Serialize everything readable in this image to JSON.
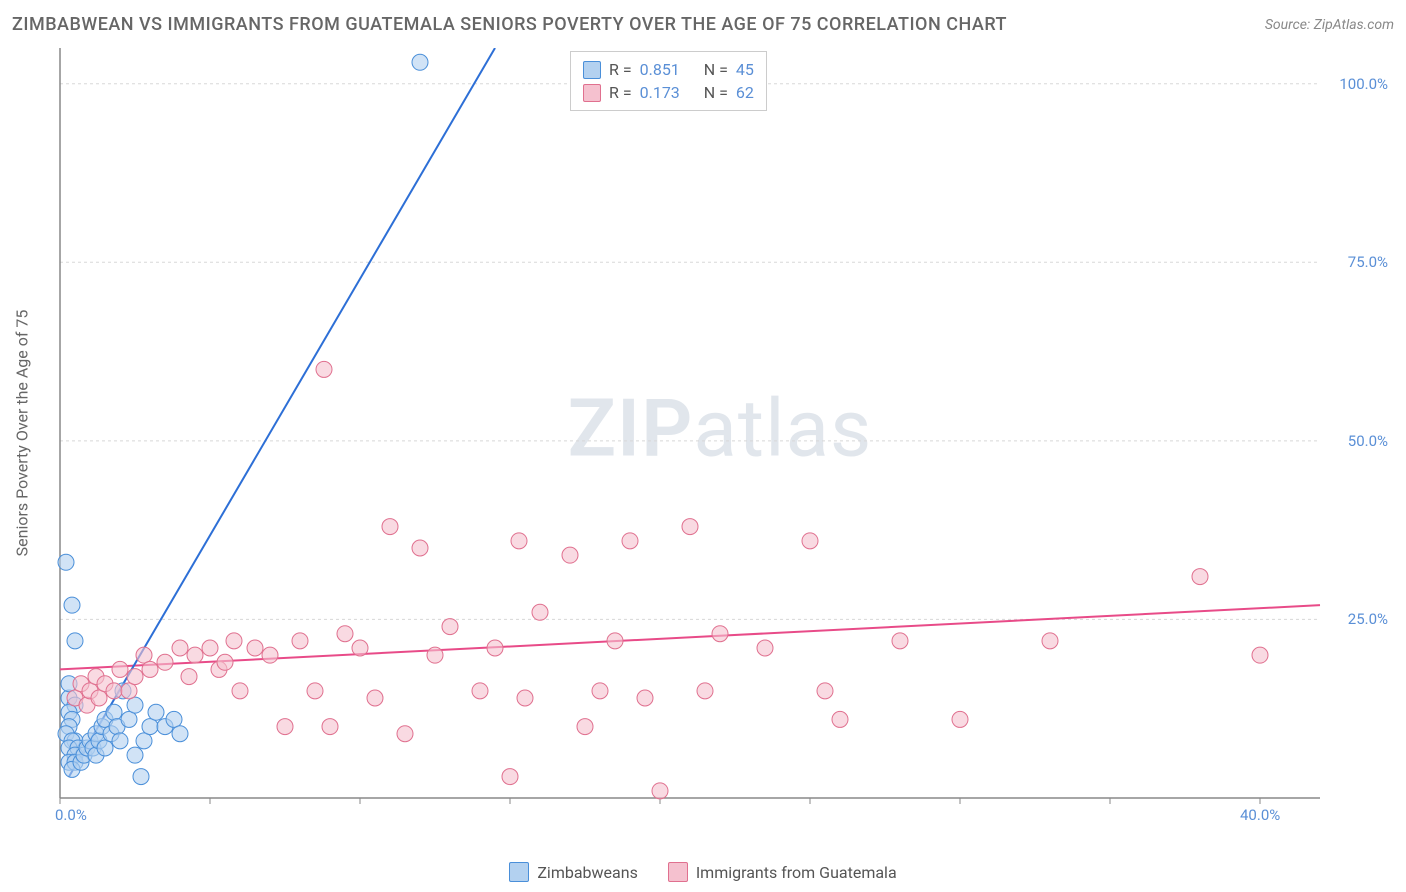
{
  "title": "ZIMBABWEAN VS IMMIGRANTS FROM GUATEMALA SENIORS POVERTY OVER THE AGE OF 75 CORRELATION CHART",
  "source": "Source: ZipAtlas.com",
  "y_axis_label": "Seniors Poverty Over the Age of 75",
  "watermark_a": "ZIP",
  "watermark_b": "atlas",
  "chart": {
    "type": "scatter",
    "background_color": "#ffffff",
    "grid_color": "#d8d8d8",
    "grid_dash": "3,3",
    "axis_color": "#888888",
    "tick_label_color": "#5a8fd6",
    "xlim": [
      0,
      42
    ],
    "ylim": [
      0,
      105
    ],
    "x_ticks": [
      0,
      5,
      10,
      15,
      20,
      25,
      30,
      35,
      40
    ],
    "x_tick_labels": {
      "0": "0.0%",
      "40": "40.0%"
    },
    "y_ticks": [
      25,
      50,
      75,
      100
    ],
    "y_tick_labels": {
      "25": "25.0%",
      "50": "50.0%",
      "75": "75.0%",
      "100": "100.0%"
    },
    "marker_radius": 8,
    "marker_opacity": 0.6,
    "line_width": 2
  },
  "series": {
    "blue": {
      "label": "Zimbabweans",
      "fill": "#b3d1f0",
      "stroke": "#4a8fd9",
      "line_color": "#2d6fd6",
      "R": "0.851",
      "N": "45",
      "trend": {
        "x1": 0.3,
        "y1": 3,
        "x2": 14.5,
        "y2": 105
      },
      "points": [
        [
          0.2,
          33
        ],
        [
          0.4,
          27
        ],
        [
          0.5,
          22
        ],
        [
          0.3,
          14
        ],
        [
          0.3,
          16
        ],
        [
          0.5,
          13
        ],
        [
          0.3,
          12
        ],
        [
          0.4,
          11
        ],
        [
          0.3,
          10
        ],
        [
          0.2,
          9
        ],
        [
          0.5,
          8
        ],
        [
          0.4,
          8
        ],
        [
          0.3,
          7
        ],
        [
          0.6,
          7
        ],
        [
          0.5,
          6
        ],
        [
          0.3,
          5
        ],
        [
          0.5,
          5
        ],
        [
          0.4,
          4
        ],
        [
          0.7,
          5
        ],
        [
          0.8,
          6
        ],
        [
          0.9,
          7
        ],
        [
          1.0,
          8
        ],
        [
          1.1,
          7
        ],
        [
          1.2,
          9
        ],
        [
          1.2,
          6
        ],
        [
          1.3,
          8
        ],
        [
          1.4,
          10
        ],
        [
          1.5,
          11
        ],
        [
          1.5,
          7
        ],
        [
          1.7,
          9
        ],
        [
          1.8,
          12
        ],
        [
          1.9,
          10
        ],
        [
          2.0,
          8
        ],
        [
          2.1,
          15
        ],
        [
          2.3,
          11
        ],
        [
          2.5,
          13
        ],
        [
          2.5,
          6
        ],
        [
          2.7,
          3
        ],
        [
          2.8,
          8
        ],
        [
          3.0,
          10
        ],
        [
          3.2,
          12
        ],
        [
          3.5,
          10
        ],
        [
          3.8,
          11
        ],
        [
          4.0,
          9
        ],
        [
          12,
          103
        ]
      ]
    },
    "pink": {
      "label": "Immigrants from Guatemala",
      "fill": "#f5c1cf",
      "stroke": "#e0708f",
      "line_color": "#e84b88",
      "R": "0.173",
      "N": "62",
      "trend": {
        "x1": 0,
        "y1": 18,
        "x2": 42,
        "y2": 27
      },
      "points": [
        [
          0.5,
          14
        ],
        [
          0.7,
          16
        ],
        [
          0.9,
          13
        ],
        [
          1.0,
          15
        ],
        [
          1.2,
          17
        ],
        [
          1.3,
          14
        ],
        [
          1.5,
          16
        ],
        [
          1.8,
          15
        ],
        [
          2.0,
          18
        ],
        [
          2.3,
          15
        ],
        [
          2.5,
          17
        ],
        [
          2.8,
          20
        ],
        [
          3.0,
          18
        ],
        [
          3.5,
          19
        ],
        [
          4.0,
          21
        ],
        [
          4.3,
          17
        ],
        [
          4.5,
          20
        ],
        [
          5.0,
          21
        ],
        [
          5.3,
          18
        ],
        [
          5.5,
          19
        ],
        [
          5.8,
          22
        ],
        [
          6.0,
          15
        ],
        [
          6.5,
          21
        ],
        [
          7.0,
          20
        ],
        [
          7.5,
          10
        ],
        [
          8.0,
          22
        ],
        [
          8.5,
          15
        ],
        [
          8.8,
          60
        ],
        [
          9.0,
          10
        ],
        [
          9.5,
          23
        ],
        [
          10,
          21
        ],
        [
          10.5,
          14
        ],
        [
          11,
          38
        ],
        [
          11.5,
          9
        ],
        [
          12,
          35
        ],
        [
          12.5,
          20
        ],
        [
          13,
          24
        ],
        [
          14,
          15
        ],
        [
          14.5,
          21
        ],
        [
          15,
          3
        ],
        [
          15.3,
          36
        ],
        [
          15.5,
          14
        ],
        [
          16,
          26
        ],
        [
          17,
          34
        ],
        [
          17.5,
          10
        ],
        [
          18,
          15
        ],
        [
          18.5,
          22
        ],
        [
          19,
          36
        ],
        [
          19.5,
          14
        ],
        [
          20,
          1
        ],
        [
          21,
          38
        ],
        [
          21.5,
          15
        ],
        [
          22,
          23
        ],
        [
          23.5,
          21
        ],
        [
          25,
          36
        ],
        [
          25.5,
          15
        ],
        [
          26,
          11
        ],
        [
          28,
          22
        ],
        [
          30,
          11
        ],
        [
          33,
          22
        ],
        [
          38,
          31
        ],
        [
          40,
          20
        ]
      ]
    }
  },
  "stats_labels": {
    "R": "R =",
    "N": "N ="
  }
}
